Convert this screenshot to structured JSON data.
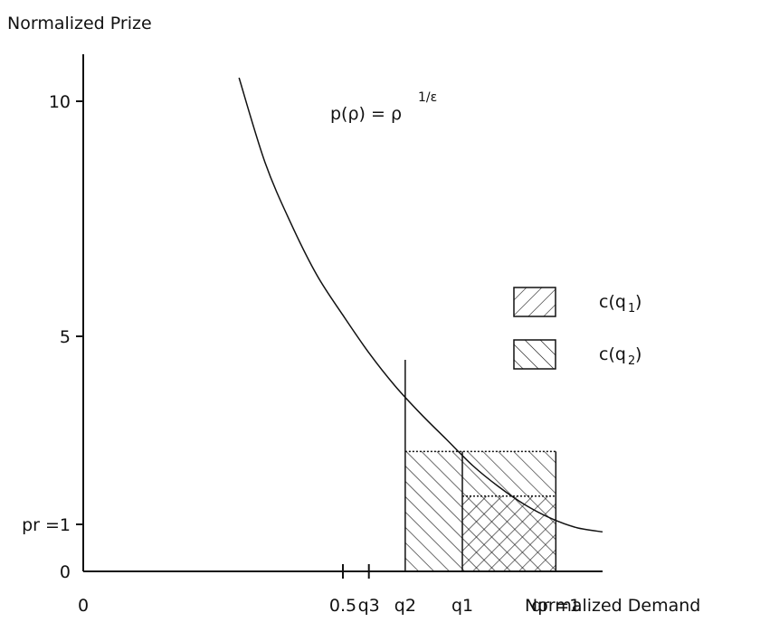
{
  "chart_data": {
    "type": "line",
    "ylabel": "Normalized Prize",
    "xlabel": "Normalized Demand",
    "formula": {
      "base": "p(ρ) = ρ",
      "exponent": "1/ε"
    },
    "y_ticks": [
      {
        "value": 10,
        "label": "10"
      },
      {
        "value": 5,
        "label": "5"
      },
      {
        "value": 1,
        "label": "pr =1"
      },
      {
        "value": 0,
        "label": "0"
      }
    ],
    "x_ticks": [
      {
        "value": 0,
        "label": "0"
      },
      {
        "value": 0.5,
        "label": "0.5"
      },
      {
        "value": 0.55,
        "label": "q3"
      },
      {
        "value": 0.62,
        "label": "q2"
      },
      {
        "value": 0.73,
        "label": "q1"
      },
      {
        "value": 0.91,
        "label": "qr =1"
      }
    ],
    "curve": {
      "name": "p(ρ)",
      "x": [
        0.3,
        0.35,
        0.4,
        0.45,
        0.5,
        0.55,
        0.6,
        0.65,
        0.7,
        0.75,
        0.8,
        0.85,
        0.9,
        0.95,
        1.0
      ],
      "y": [
        10.5,
        8.7,
        7.4,
        6.3,
        5.45,
        4.65,
        3.95,
        3.35,
        2.8,
        2.25,
        1.8,
        1.42,
        1.13,
        0.93,
        0.84
      ]
    },
    "rectangles": [
      {
        "name": "c(q1)",
        "x0": 0.73,
        "x1": 0.91,
        "y0": 0,
        "y1": 1.6,
        "hatch": "forward"
      },
      {
        "name": "c(q2)",
        "x0": 0.62,
        "x1": 0.91,
        "y0": 0,
        "y1": 2.55,
        "hatch": "backward"
      }
    ],
    "q2_vertical_top": 4.5,
    "legend": {
      "placement": "right",
      "entries": [
        {
          "label": "c(q1)",
          "hatch": "forward"
        },
        {
          "label": "c(q2)",
          "hatch": "backward"
        }
      ]
    },
    "xlim": [
      0,
      1.0
    ],
    "ylim": [
      0,
      11
    ]
  }
}
